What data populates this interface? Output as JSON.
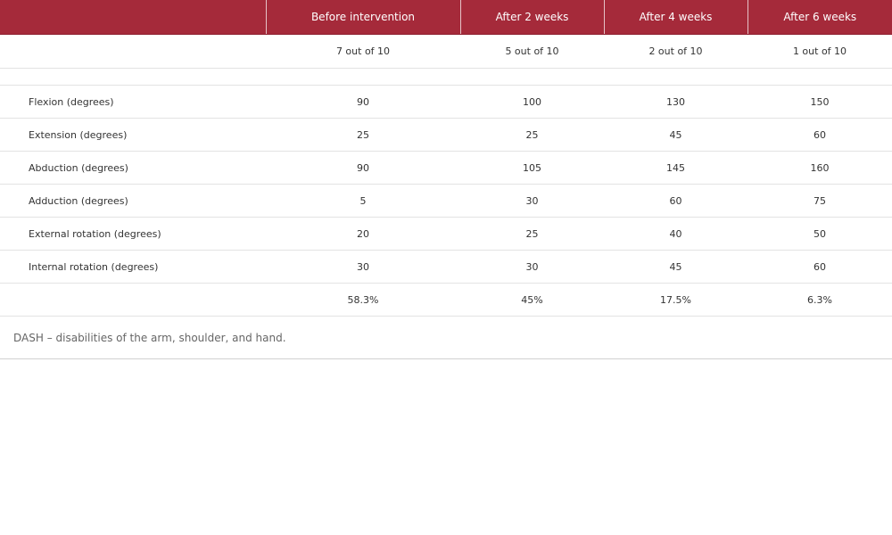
{
  "table": {
    "headers": [
      "",
      "Before intervention",
      "After 2 weeks",
      "After 4 weeks",
      "After 6 weeks"
    ],
    "pain_row": [
      "7 out of 10",
      "5 out of 10",
      "2 out of 10",
      "1 out of 10"
    ],
    "rows": [
      {
        "label": "Flexion (degrees)",
        "values": [
          "90",
          "100",
          "130",
          "150"
        ]
      },
      {
        "label": "Extension (degrees)",
        "values": [
          "25",
          "25",
          "45",
          "60"
        ]
      },
      {
        "label": "Abduction (degrees)",
        "values": [
          "90",
          "105",
          "145",
          "160"
        ]
      },
      {
        "label": "Adduction (degrees)",
        "values": [
          "5",
          "30",
          "60",
          "75"
        ]
      },
      {
        "label": "External rotation (degrees)",
        "values": [
          "20",
          "25",
          "40",
          "50"
        ]
      },
      {
        "label": "Internal rotation (degrees)",
        "values": [
          "30",
          "30",
          "45",
          "60"
        ]
      }
    ],
    "dash_row": [
      "58.3%",
      "45%",
      "17.5%",
      "6.3%"
    ]
  },
  "footnote": "DASH – disabilities of the arm, shoulder, and hand."
}
